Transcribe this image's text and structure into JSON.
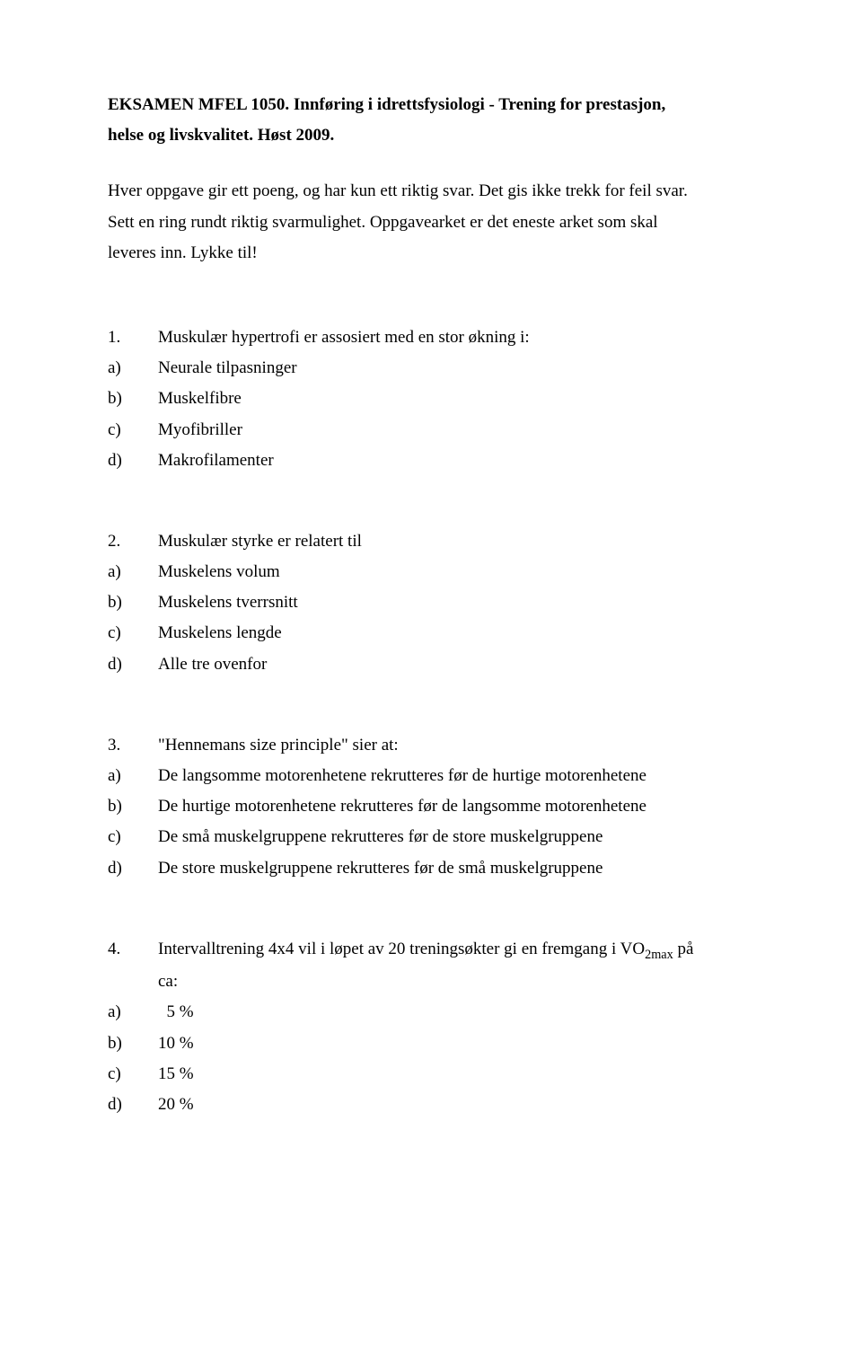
{
  "header": {
    "title_line1": "EKSAMEN MFEL 1050. Innføring i idrettsfysiologi - Trening for prestasjon,",
    "title_line2": "helse og livskvalitet. Høst 2009."
  },
  "intro": {
    "line1": "Hver oppgave gir ett poeng, og har kun ett riktig svar. Det gis ikke trekk for feil svar.",
    "line2": "Sett en ring rundt riktig svarmulighet. Oppgavearket er det eneste arket som skal",
    "line3": "leveres inn. Lykke til!"
  },
  "questions": [
    {
      "num": "1.",
      "text": "Muskulær hypertrofi er assosiert med en stor økning i:",
      "options": [
        {
          "label": "a)",
          "text": "Neurale tilpasninger"
        },
        {
          "label": "b)",
          "text": "Muskelfibre"
        },
        {
          "label": "c)",
          "text": "Myofibriller"
        },
        {
          "label": "d)",
          "text": "Makrofilamenter"
        }
      ]
    },
    {
      "num": "2.",
      "text": "Muskulær styrke er relatert til",
      "options": [
        {
          "label": "a)",
          "text": "Muskelens volum"
        },
        {
          "label": "b)",
          "text": "Muskelens tverrsnitt"
        },
        {
          "label": "c)",
          "text": "Muskelens lengde"
        },
        {
          "label": "d)",
          "text": "Alle tre ovenfor"
        }
      ]
    },
    {
      "num": "3.",
      "text": "\"Hennemans size principle\" sier at:",
      "options": [
        {
          "label": "a)",
          "text": "De langsomme motorenhetene rekrutteres før de hurtige motorenhetene"
        },
        {
          "label": "b)",
          "text": "De hurtige motorenhetene rekrutteres før de langsomme motorenhetene"
        },
        {
          "label": "c)",
          "text": "De små muskelgruppene rekrutteres før de store muskelgruppene"
        },
        {
          "label": "d)",
          "text": "De store muskelgruppene rekrutteres før de små muskelgruppene"
        }
      ]
    },
    {
      "num": "4.",
      "text_prefix": "Intervalltrening 4x4 vil i løpet av 20 treningsøkter gi en fremgang i VO",
      "text_sub": "2max",
      "text_suffix": " på",
      "text_line2": "ca:",
      "options": [
        {
          "label": "a)",
          "text": "  5 %"
        },
        {
          "label": "b)",
          "text": "10 %"
        },
        {
          "label": "c)",
          "text": "15 %"
        },
        {
          "label": "d)",
          "text": "20 %"
        }
      ]
    }
  ]
}
